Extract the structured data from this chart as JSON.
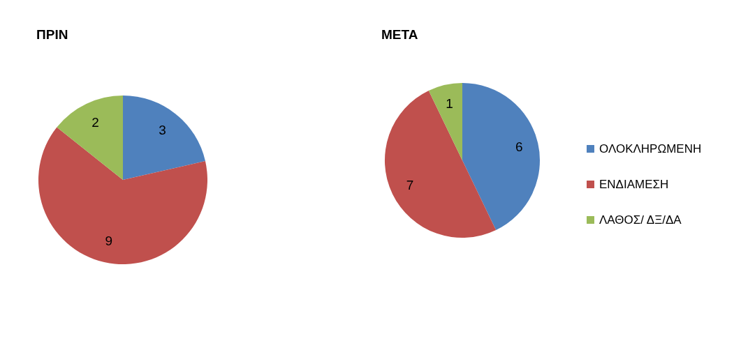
{
  "chart_data": [
    {
      "type": "pie",
      "title": "ΠΡΙΝ",
      "categories": [
        null,
        null,
        null
      ],
      "values": [
        3,
        9,
        2
      ],
      "colors": [
        "#4f81bd",
        "#c0504d",
        "#9bbb59"
      ],
      "data_labels": true,
      "legend": false
    },
    {
      "type": "pie",
      "title": "ΜΕΤΑ",
      "categories": [
        "ΟΛΟΚΛΗΡΩΜΕΝΗ",
        "ΕΝΔΙΑΜΕΣΗ",
        "ΛΑΘΟΣ/ ΔΞ/ΔΑ"
      ],
      "values": [
        6,
        7,
        1
      ],
      "colors": [
        "#4f81bd",
        "#c0504d",
        "#9bbb59"
      ],
      "data_labels": true,
      "legend": "right"
    }
  ]
}
